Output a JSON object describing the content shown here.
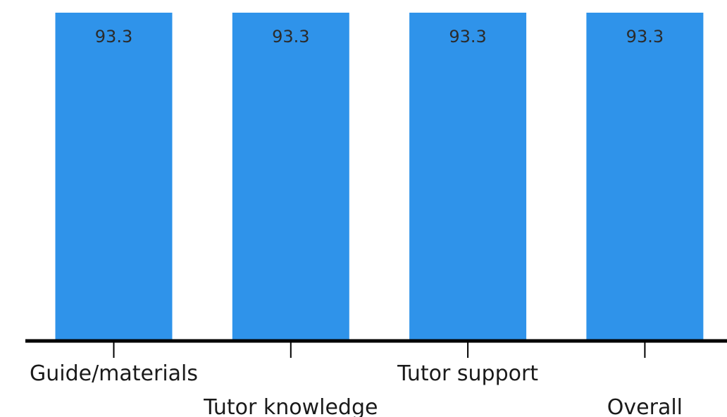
{
  "chart_data": {
    "type": "bar",
    "categories": [
      "Guide/materials",
      "Tutor knowledge",
      "Tutor support",
      "Overall"
    ],
    "values": [
      93.3,
      93.3,
      93.3,
      93.3
    ],
    "data_labels": [
      "93.3",
      "93.3",
      "93.3",
      "93.3"
    ],
    "title": "",
    "xlabel": "",
    "ylabel": "",
    "ylim": [
      0,
      93.3
    ],
    "grid": false,
    "legend": "none",
    "bar_color": "#2f93ea"
  }
}
